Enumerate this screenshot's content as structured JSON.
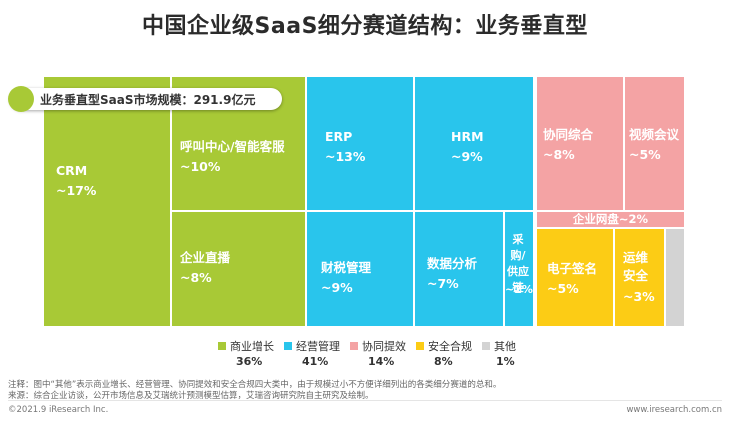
{
  "title": "中国企业级SaaS细分赛道结构：业务垂直型",
  "badge": "业务垂直型SaaS市场规模：291.9亿元",
  "colors": {
    "growth": "#a8c936",
    "operations": "#29c5ec",
    "collaboration": "#f4a3a4",
    "compliance": "#fccc15",
    "other": "#d3d3d3"
  },
  "chart_data": {
    "type": "treemap",
    "title": "中国企业级SaaS细分赛道结构：业务垂直型",
    "total": "291.9亿元",
    "groups": [
      {
        "key": "growth",
        "name": "商业增长",
        "share": "36%"
      },
      {
        "key": "operations",
        "name": "经营管理",
        "share": "41%"
      },
      {
        "key": "collaboration",
        "name": "协同提效",
        "share": "14%"
      },
      {
        "key": "compliance",
        "name": "安全合规",
        "share": "8%"
      },
      {
        "key": "other",
        "name": "其他",
        "share": "1%"
      }
    ],
    "tiles": [
      {
        "group": "growth",
        "name": "CRM",
        "share": "~17%",
        "value": 17
      },
      {
        "group": "growth",
        "name": "呼叫中心/智能客服",
        "share": "~10%",
        "value": 10
      },
      {
        "group": "growth",
        "name": "企业直播",
        "share": "~8%",
        "value": 8
      },
      {
        "group": "operations",
        "name": "ERP",
        "share": "~13%",
        "value": 13
      },
      {
        "group": "operations",
        "name": "HRM",
        "share": "~9%",
        "value": 9
      },
      {
        "group": "operations",
        "name": "财税管理",
        "share": "~9%",
        "value": 9
      },
      {
        "group": "operations",
        "name": "数据分析",
        "share": "~7%",
        "value": 7
      },
      {
        "group": "operations",
        "name": "采购/供应链",
        "share": "~2%",
        "value": 2
      },
      {
        "group": "collaboration",
        "name": "协同综合",
        "share": "~8%",
        "value": 8
      },
      {
        "group": "collaboration",
        "name": "视频会议",
        "share": "~5%",
        "value": 5
      },
      {
        "group": "collaboration",
        "name": "企业网盘",
        "share": "~2%",
        "value": 2
      },
      {
        "group": "compliance",
        "name": "电子签名",
        "share": "~5%",
        "value": 5
      },
      {
        "group": "compliance",
        "name": "运维安全",
        "share": "~3%",
        "value": 3
      },
      {
        "group": "other",
        "name": "其他",
        "share": "",
        "value": 1
      }
    ]
  },
  "notes": [
    "注释：图中“其他”表示商业增长、经营管理、协同提效和安全合规四大类中，由于规模过小不方便详细列出的各类细分赛道的总和。",
    "来源：综合企业访谈，公开市场信息及艾瑞统计预测模型估算，艾瑞咨询研究院自主研究及绘制。"
  ],
  "footer": {
    "left": "©2021.9 iResearch Inc.",
    "right": "www.iresearch.com.cn"
  }
}
